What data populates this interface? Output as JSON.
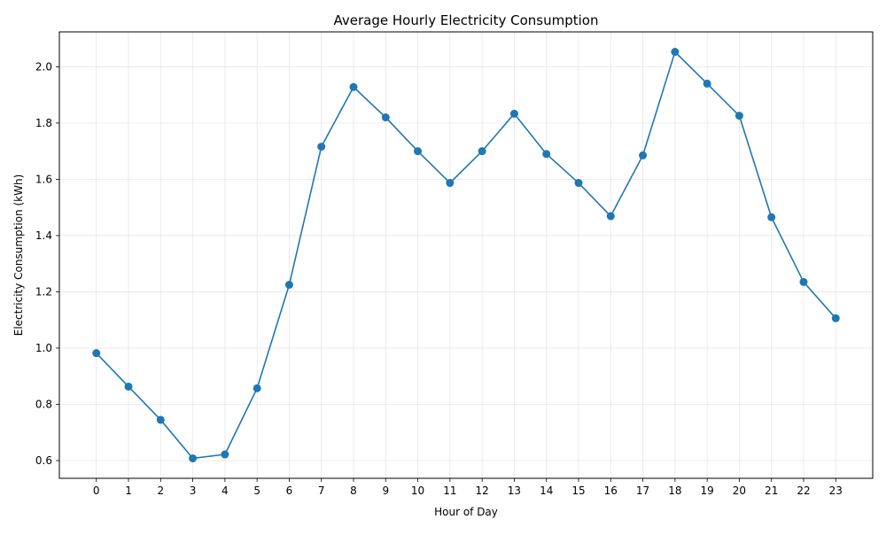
{
  "chart_data": {
    "type": "line",
    "title": "Average Hourly Electricity Consumption",
    "xlabel": "Hour of Day",
    "ylabel": "Electricity Consumption (kWh)",
    "x": [
      0,
      1,
      2,
      3,
      4,
      5,
      6,
      7,
      8,
      9,
      10,
      11,
      12,
      13,
      14,
      15,
      16,
      17,
      18,
      19,
      20,
      21,
      22,
      23
    ],
    "x_ticks": [
      "0",
      "1",
      "2",
      "3",
      "4",
      "5",
      "6",
      "7",
      "8",
      "9",
      "10",
      "11",
      "12",
      "13",
      "14",
      "15",
      "16",
      "17",
      "18",
      "19",
      "20",
      "21",
      "22",
      "23"
    ],
    "y_ticks": [
      "0.6",
      "0.8",
      "1.0",
      "1.2",
      "1.4",
      "1.6",
      "1.8",
      "2.0"
    ],
    "xlim": [
      -1.15,
      24.15
    ],
    "ylim": [
      0.537,
      2.124
    ],
    "grid": true,
    "marker": "circle",
    "color": "#1f77b4",
    "series": [
      {
        "values": [
          0.982,
          0.863,
          0.745,
          0.608,
          0.622,
          0.857,
          1.225,
          1.716,
          1.928,
          1.82,
          1.7,
          1.587,
          1.7,
          1.833,
          1.69,
          1.587,
          1.469,
          1.685,
          2.053,
          1.94,
          1.826,
          1.465,
          1.235,
          1.106
        ]
      }
    ]
  }
}
